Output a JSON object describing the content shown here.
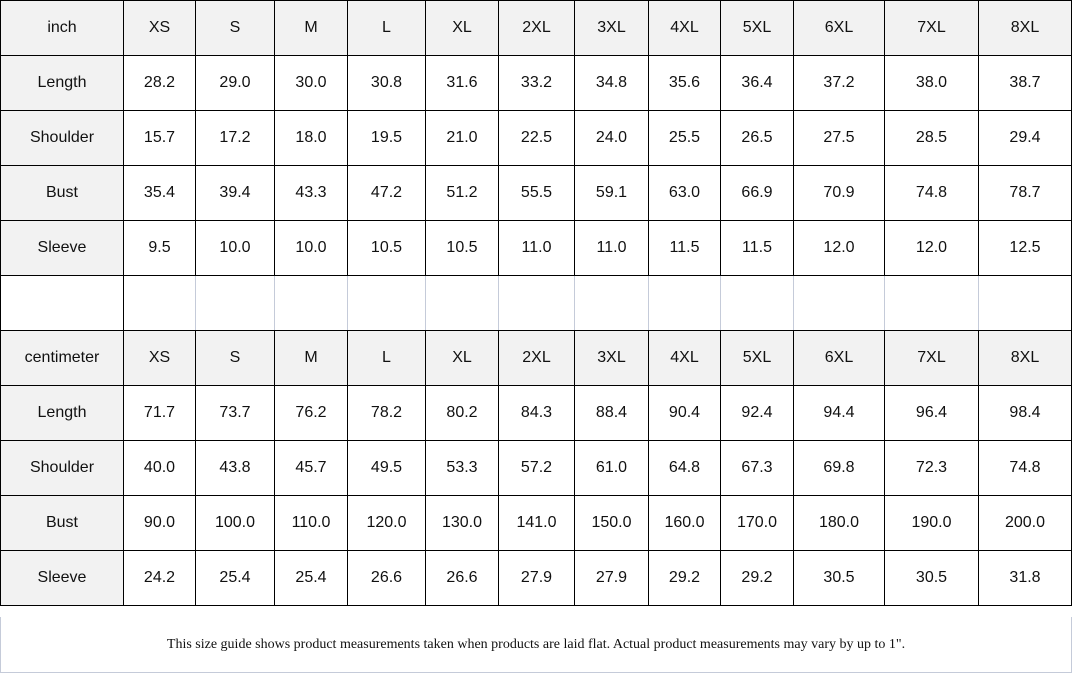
{
  "sizes": [
    "XS",
    "S",
    "M",
    "L",
    "XL",
    "2XL",
    "3XL",
    "4XL",
    "5XL",
    "6XL",
    "7XL",
    "8XL"
  ],
  "tables": [
    {
      "unit": "inch",
      "rows": [
        {
          "label": "Length",
          "values": [
            "28.2",
            "29.0",
            "30.0",
            "30.8",
            "31.6",
            "33.2",
            "34.8",
            "35.6",
            "36.4",
            "37.2",
            "38.0",
            "38.7"
          ]
        },
        {
          "label": "Shoulder",
          "values": [
            "15.7",
            "17.2",
            "18.0",
            "19.5",
            "21.0",
            "22.5",
            "24.0",
            "25.5",
            "26.5",
            "27.5",
            "28.5",
            "29.4"
          ]
        },
        {
          "label": "Bust",
          "values": [
            "35.4",
            "39.4",
            "43.3",
            "47.2",
            "51.2",
            "55.5",
            "59.1",
            "63.0",
            "66.9",
            "70.9",
            "74.8",
            "78.7"
          ]
        },
        {
          "label": "Sleeve",
          "values": [
            "9.5",
            "10.0",
            "10.0",
            "10.5",
            "10.5",
            "11.0",
            "11.0",
            "11.5",
            "11.5",
            "12.0",
            "12.0",
            "12.5"
          ]
        }
      ]
    },
    {
      "unit": "centimeter",
      "rows": [
        {
          "label": "Length",
          "values": [
            "71.7",
            "73.7",
            "76.2",
            "78.2",
            "80.2",
            "84.3",
            "88.4",
            "90.4",
            "92.4",
            "94.4",
            "96.4",
            "98.4"
          ]
        },
        {
          "label": "Shoulder",
          "values": [
            "40.0",
            "43.8",
            "45.7",
            "49.5",
            "53.3",
            "57.2",
            "61.0",
            "64.8",
            "67.3",
            "69.8",
            "72.3",
            "74.8"
          ]
        },
        {
          "label": "Bust",
          "values": [
            "90.0",
            "100.0",
            "110.0",
            "120.0",
            "130.0",
            "141.0",
            "150.0",
            "160.0",
            "170.0",
            "180.0",
            "190.0",
            "200.0"
          ]
        },
        {
          "label": "Sleeve",
          "values": [
            "24.2",
            "25.4",
            "25.4",
            "26.6",
            "26.6",
            "27.9",
            "27.9",
            "29.2",
            "29.2",
            "30.5",
            "30.5",
            "31.8"
          ]
        }
      ]
    }
  ],
  "note": "This size guide shows product measurements taken when products are laid flat. Actual product measurements may vary by up to 1\"."
}
